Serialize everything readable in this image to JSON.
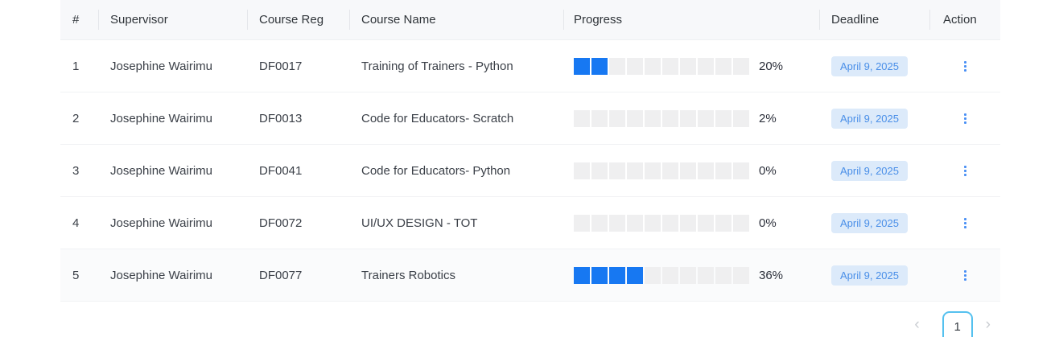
{
  "table": {
    "columns": [
      {
        "label": "#"
      },
      {
        "label": "Supervisor"
      },
      {
        "label": "Course Reg"
      },
      {
        "label": "Course Name"
      },
      {
        "label": "Progress"
      },
      {
        "label": "Deadline"
      },
      {
        "label": "Action"
      }
    ],
    "progress_segments_total": 10,
    "rows": [
      {
        "index": "1",
        "supervisor": "Josephine Wairimu",
        "course_reg": "DF0017",
        "course_name": "Training of Trainers - Python",
        "progress_percent": 20,
        "progress_label": "20%",
        "progress_filled_segments": 2,
        "deadline": "April 9, 2025"
      },
      {
        "index": "2",
        "supervisor": "Josephine Wairimu",
        "course_reg": "DF0013",
        "course_name": "Code for Educators- Scratch",
        "progress_percent": 2,
        "progress_label": "2%",
        "progress_filled_segments": 0,
        "deadline": "April 9, 2025"
      },
      {
        "index": "3",
        "supervisor": "Josephine Wairimu",
        "course_reg": "DF0041",
        "course_name": "Code for Educators- Python",
        "progress_percent": 0,
        "progress_label": "0%",
        "progress_filled_segments": 0,
        "deadline": "April 9, 2025"
      },
      {
        "index": "4",
        "supervisor": "Josephine Wairimu",
        "course_reg": "DF0072",
        "course_name": "UI/UX DESIGN - TOT",
        "progress_percent": 0,
        "progress_label": "0%",
        "progress_filled_segments": 0,
        "deadline": "April 9, 2025"
      },
      {
        "index": "5",
        "supervisor": "Josephine Wairimu",
        "course_reg": "DF0077",
        "course_name": "Trainers Robotics",
        "progress_percent": 36,
        "progress_label": "36%",
        "progress_filled_segments": 4,
        "deadline": "April 9, 2025"
      }
    ]
  },
  "icons": {
    "action": "kebab-vertical-icon",
    "pagination_prev": "‹",
    "pagination_next": "›"
  },
  "pagination": {
    "current_page": "1"
  },
  "colors": {
    "progress_filled": "#1778f2",
    "progress_empty": "#efeff0",
    "deadline_badge_bg": "#dceafa",
    "deadline_badge_text": "#4a8fe8",
    "action_icon": "#4a90f5",
    "page_button_border": "#55c1ef"
  }
}
